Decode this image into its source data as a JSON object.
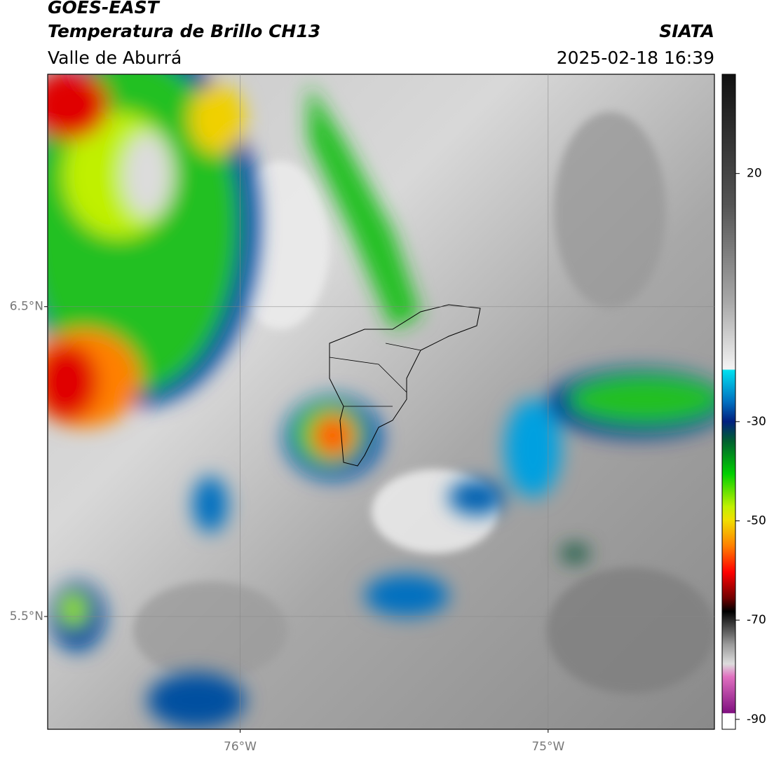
{
  "chart_data": {
    "type": "map",
    "title": "GOES-EAST",
    "subtitle": "Temperatura de Brillo CH13",
    "region": "Valle de Aburrá",
    "source": "SIATA",
    "timestamp": "2025-02-18 16:39",
    "xlim": [
      -76.625,
      -74.46
    ],
    "ylim": [
      5.136,
      7.25
    ],
    "xticks": [
      {
        "value": -76,
        "label": "76°W"
      },
      {
        "value": -75,
        "label": "75°W"
      }
    ],
    "yticks": [
      {
        "value": 6.5,
        "label": "6.5°N"
      },
      {
        "value": 5.5,
        "label": "5.5°N"
      }
    ],
    "grid": true,
    "colorbar": {
      "lim": [
        -92,
        40
      ],
      "ticks": [
        20,
        -30,
        -50,
        -70,
        -90
      ]
    }
  }
}
